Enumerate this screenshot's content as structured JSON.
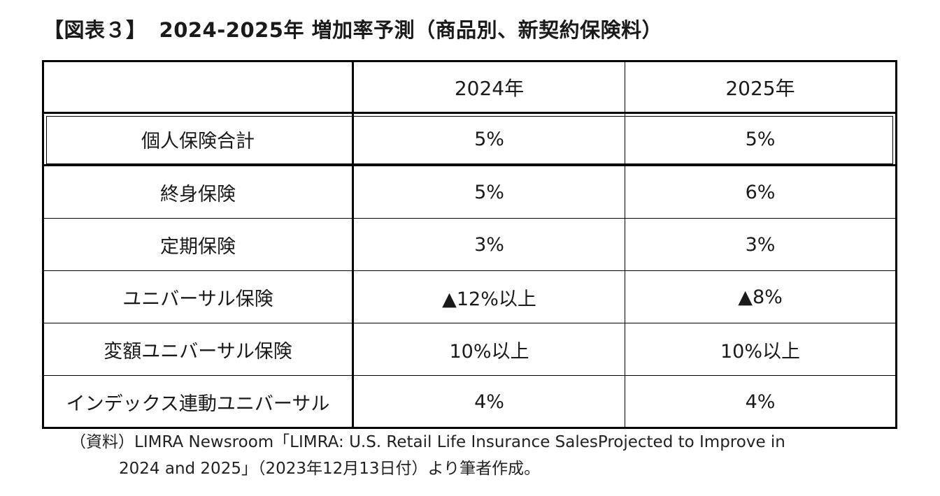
{
  "title": {
    "label": "【図表３】",
    "text": "2024-2025年  増加率予測（商品別、新契約保険料）"
  },
  "table": {
    "headers": [
      "",
      "2024年",
      "2025年"
    ],
    "rows": [
      {
        "category": "個人保険合計",
        "y2024": "5%",
        "y2025": "5%"
      },
      {
        "category": "終身保険",
        "y2024": "5%",
        "y2025": "6%"
      },
      {
        "category": "定期保険",
        "y2024": "3%",
        "y2025": "3%"
      },
      {
        "category": "ユニバーサル保険",
        "y2024": "▲12%以上",
        "y2025": "▲8%"
      },
      {
        "category": "変額ユニバーサル保険",
        "y2024": "10%以上",
        "y2025": "10%以上"
      },
      {
        "category": "インデックス連動ユニバーサル",
        "y2024": "4%",
        "y2025": "4%"
      }
    ]
  },
  "source_note": {
    "line1": "（資料）LIMRA Newsroom「LIMRA: U.S. Retail Life Insurance SalesProjected to Improve in",
    "line2": "2024 and 2025」（2023年12月13日付）より筆者作成。"
  }
}
